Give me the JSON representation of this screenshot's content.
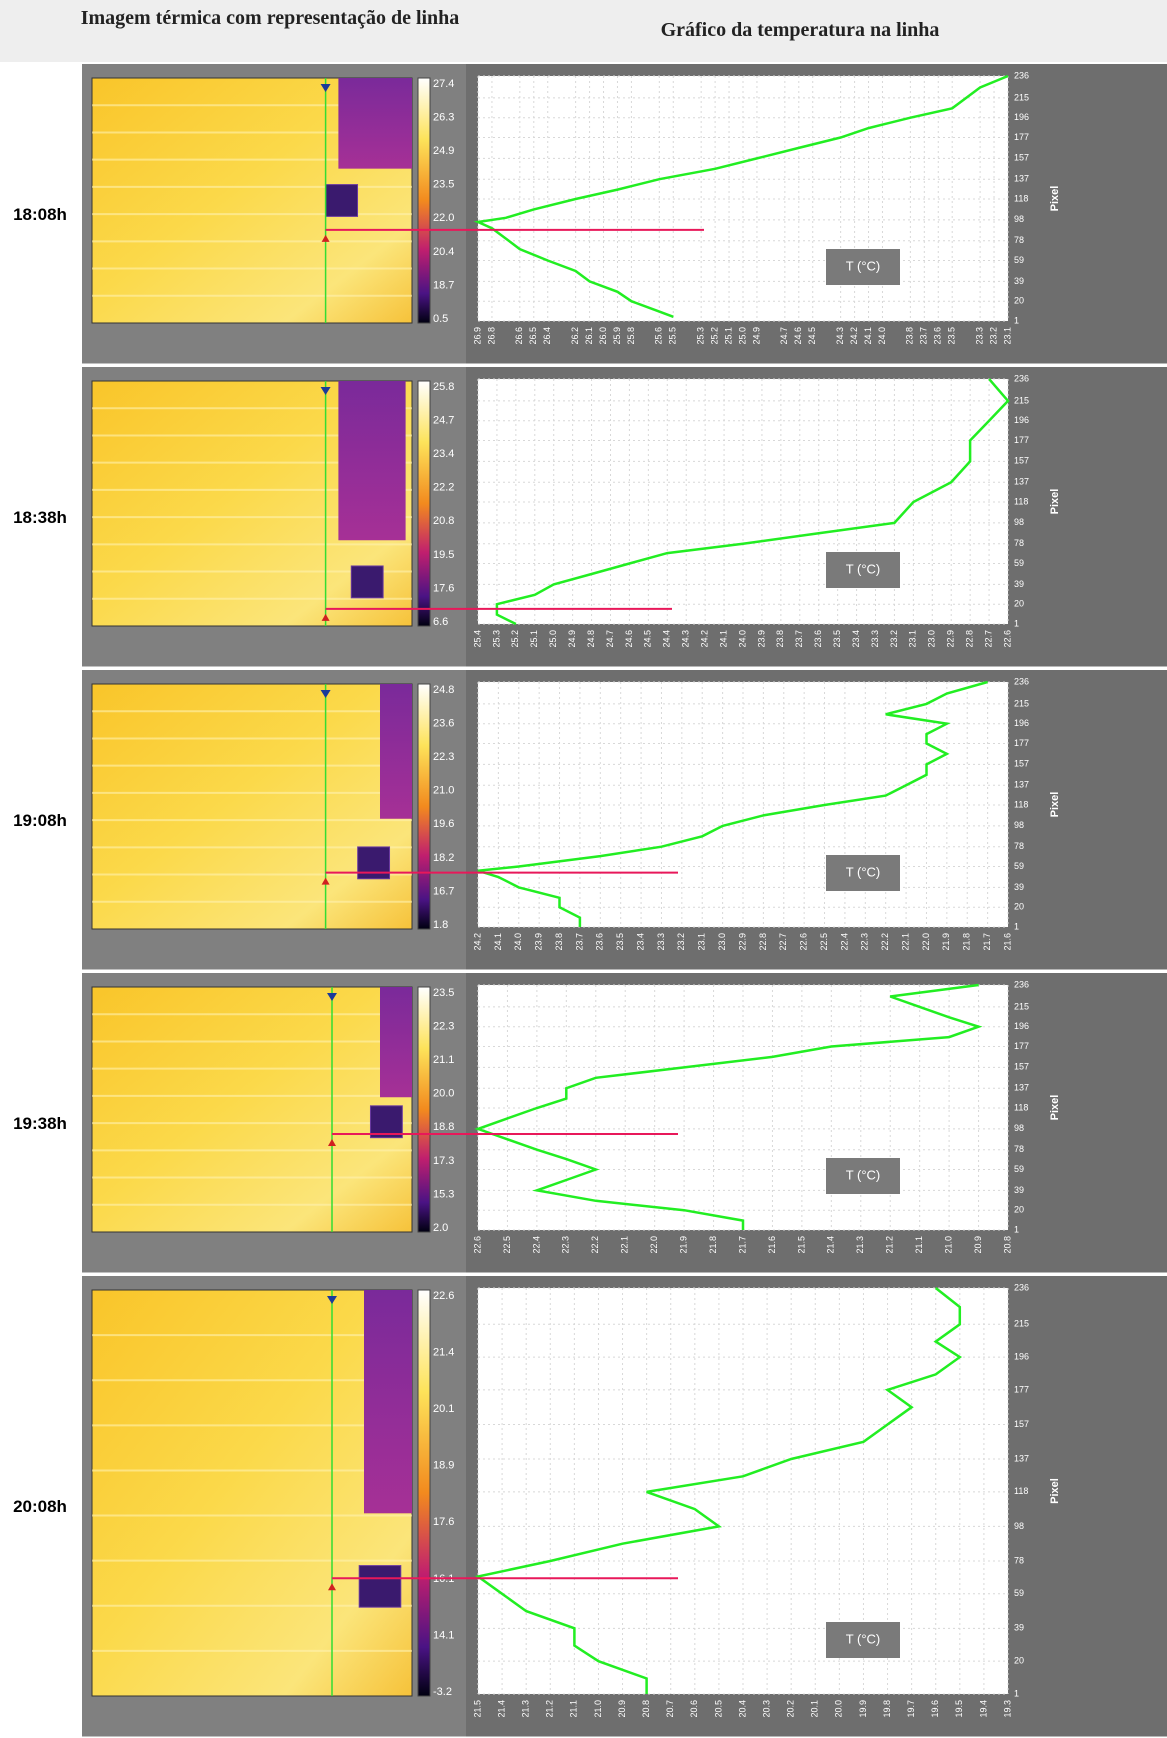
{
  "header": {
    "image_column": "Imagem térmica com representação de linha",
    "chart_column": "Gráfico da temperatura na linha"
  },
  "rows": [
    {
      "time": "18:08h",
      "colorbar_labels": [
        "27.4",
        "26.3",
        "24.9",
        "23.5",
        "22.0",
        "20.4",
        "18.7",
        "0.5"
      ],
      "chart": {
        "type": "line",
        "x_label": "T (°C)",
        "y_label": "Pixel",
        "xlim": [
          26.9,
          23.1
        ],
        "xticks": [
          26.9,
          26.8,
          26.6,
          26.5,
          26.4,
          26.2,
          26.1,
          {
            "value": 26,
            "label": "26.0"
          },
          25.9,
          25.8,
          25.6,
          25.5,
          25.3,
          25.2,
          25.1,
          {
            "value": 25,
            "label": "25.0"
          },
          24.9,
          24.7,
          24.6,
          24.5,
          24.3,
          24.2,
          24.1,
          {
            "value": 24,
            "label": "24.0"
          },
          23.8,
          23.7,
          23.6,
          23.5,
          23.3,
          23.2,
          23.1
        ],
        "ylim": [
          1,
          236
        ],
        "yticks": [
          1,
          20,
          39,
          59,
          78,
          98,
          118,
          137,
          157,
          177,
          196,
          215,
          236
        ],
        "series": [
          {
            "color": "#22ee22",
            "pixels": [
              236,
              225,
              215,
              205,
              196,
              186,
              177,
              167,
              157,
              147,
              137,
              127,
              118,
              108,
              100,
              96,
              90,
              80,
              70,
              59,
              49,
              39,
              29,
              20,
              10,
              5
            ],
            "values": [
              23.1,
              23.3,
              23.4,
              23.5,
              23.8,
              24.1,
              24.3,
              24.6,
              24.9,
              25.2,
              25.6,
              25.9,
              26.2,
              26.5,
              26.7,
              26.9,
              26.8,
              26.7,
              26.6,
              26.4,
              26.2,
              26.1,
              25.9,
              25.8,
              25.6,
              25.5
            ]
          }
        ]
      }
    },
    {
      "time": "18:38h",
      "colorbar_labels": [
        "25.8",
        "24.7",
        "23.4",
        "22.2",
        "20.8",
        "19.5",
        "17.6",
        "6.6"
      ],
      "chart": {
        "type": "line",
        "x_label": "T (°C)",
        "y_label": "Pixel",
        "xlim": [
          25.4,
          22.6
        ],
        "xticks": [
          25.4,
          25.3,
          25.2,
          25.1,
          {
            "value": 25,
            "label": "25.0"
          },
          24.9,
          24.8,
          24.7,
          24.6,
          24.5,
          24.4,
          24.3,
          24.2,
          24.1,
          {
            "value": 24,
            "label": "24.0"
          },
          23.9,
          23.8,
          23.7,
          23.6,
          23.5,
          23.4,
          23.3,
          23.2,
          23.1,
          {
            "value": 23,
            "label": "23.0"
          },
          22.9,
          22.8,
          22.7,
          22.6
        ],
        "ylim": [
          1,
          236
        ],
        "yticks": [
          1,
          20,
          39,
          59,
          78,
          98,
          118,
          137,
          157,
          177,
          196,
          215,
          236
        ],
        "series": [
          {
            "color": "#22ee22",
            "pixels": [
              236,
              215,
              196,
              177,
              157,
              137,
              118,
              98,
              88,
              78,
              69,
              59,
              49,
              39,
              29,
              20,
              10,
              1
            ],
            "values": [
              22.7,
              22.6,
              22.7,
              22.8,
              22.8,
              22.9,
              23.1,
              23.2,
              23.6,
              24.0,
              24.4,
              24.6,
              24.8,
              25.0,
              25.1,
              25.3,
              25.3,
              25.2
            ]
          }
        ]
      }
    },
    {
      "time": "19:08h",
      "colorbar_labels": [
        "24.8",
        "23.6",
        "22.3",
        "21.0",
        "19.6",
        "18.2",
        "16.7",
        "1.8"
      ],
      "chart": {
        "type": "line",
        "x_label": "T (°C)",
        "y_label": "Pixel",
        "xlim": [
          24.2,
          21.6
        ],
        "xticks": [
          24.2,
          24.1,
          {
            "value": 24,
            "label": "24.0"
          },
          23.9,
          23.8,
          23.7,
          23.6,
          23.5,
          23.4,
          23.3,
          23.2,
          23.1,
          {
            "value": 23,
            "label": "23.0"
          },
          22.9,
          22.8,
          22.7,
          22.6,
          22.5,
          22.4,
          22.3,
          22.2,
          22.1,
          {
            "value": 22,
            "label": "22.0"
          },
          21.9,
          21.8,
          21.7,
          21.6
        ],
        "ylim": [
          1,
          236
        ],
        "yticks": [
          1,
          20,
          39,
          59,
          78,
          98,
          118,
          137,
          157,
          177,
          196,
          215,
          236
        ],
        "series": [
          {
            "color": "#22ee22",
            "pixels": [
              236,
              225,
              215,
              205,
              196,
              186,
              177,
              167,
              157,
              147,
              137,
              127,
              118,
              108,
              98,
              88,
              78,
              69,
              59,
              55,
              49,
              39,
              29,
              20,
              10,
              1
            ],
            "values": [
              21.7,
              21.9,
              22.0,
              22.2,
              21.9,
              22.0,
              22.0,
              21.9,
              22.0,
              22.0,
              22.1,
              22.2,
              22.5,
              22.8,
              23.0,
              23.1,
              23.3,
              23.6,
              24.0,
              24.2,
              24.1,
              24.0,
              23.8,
              23.8,
              23.7,
              23.7
            ]
          }
        ]
      }
    },
    {
      "time": "19:38h",
      "colorbar_labels": [
        "23.5",
        "22.3",
        "21.1",
        "20.0",
        "18.8",
        "17.3",
        "15.3",
        "2.0"
      ],
      "chart": {
        "type": "line",
        "x_label": "T (°C)",
        "y_label": "Pixel",
        "xlim": [
          22.6,
          20.8
        ],
        "xticks": [
          22.6,
          22.5,
          22.4,
          22.3,
          22.2,
          22.1,
          {
            "value": 22,
            "label": "22.0"
          },
          21.9,
          21.8,
          21.7,
          21.6,
          21.5,
          21.4,
          21.3,
          21.2,
          21.1,
          {
            "value": 21,
            "label": "21.0"
          },
          20.9,
          20.8
        ],
        "ylim": [
          1,
          236
        ],
        "yticks": [
          1,
          20,
          39,
          59,
          78,
          98,
          118,
          137,
          157,
          177,
          196,
          215,
          236
        ],
        "series": [
          {
            "color": "#22ee22",
            "pixels": [
              236,
              225,
              215,
              205,
              196,
              186,
              177,
              167,
              157,
              147,
              137,
              127,
              118,
              108,
              98,
              88,
              78,
              69,
              59,
              49,
              39,
              29,
              20,
              10,
              1
            ],
            "values": [
              20.9,
              21.2,
              21.1,
              21.0,
              20.9,
              21.0,
              21.4,
              21.6,
              21.9,
              22.2,
              22.3,
              22.3,
              22.4,
              22.5,
              22.6,
              22.5,
              22.4,
              22.3,
              22.2,
              22.3,
              22.4,
              22.2,
              21.9,
              21.7,
              21.7
            ]
          }
        ]
      }
    },
    {
      "time": "20:08h",
      "colorbar_labels": [
        "22.6",
        "21.4",
        "20.1",
        "18.9",
        "17.6",
        "16.1",
        "14.1",
        "-3.2"
      ],
      "chart": {
        "type": "line",
        "x_label": "T (°C)",
        "y_label": "Pixel",
        "xlim": [
          21.5,
          19.3
        ],
        "xticks": [
          21.5,
          21.4,
          21.3,
          21.2,
          21.1,
          {
            "value": 21,
            "label": "21.0"
          },
          20.9,
          20.8,
          20.7,
          20.6,
          20.5,
          20.4,
          20.3,
          20.2,
          20.1,
          {
            "value": 20,
            "label": "20.0"
          },
          19.9,
          19.8,
          19.7,
          19.6,
          19.5,
          19.4,
          19.3
        ],
        "ylim": [
          1,
          236
        ],
        "yticks": [
          1,
          20,
          39,
          59,
          78,
          98,
          118,
          137,
          157,
          177,
          196,
          215,
          236
        ],
        "series": [
          {
            "color": "#22ee22",
            "pixels": [
              236,
              225,
              215,
              205,
              196,
              186,
              177,
              167,
              157,
              147,
              137,
              127,
              118,
              108,
              98,
              88,
              78,
              69,
              59,
              49,
              39,
              29,
              20,
              10,
              1
            ],
            "values": [
              19.6,
              19.5,
              19.5,
              19.6,
              19.5,
              19.6,
              19.8,
              19.7,
              19.8,
              19.9,
              20.2,
              20.4,
              20.8,
              20.6,
              20.5,
              20.9,
              21.2,
              21.5,
              21.4,
              21.3,
              21.1,
              21.1,
              21.0,
              20.8,
              20.8
            ]
          }
        ]
      }
    }
  ]
}
